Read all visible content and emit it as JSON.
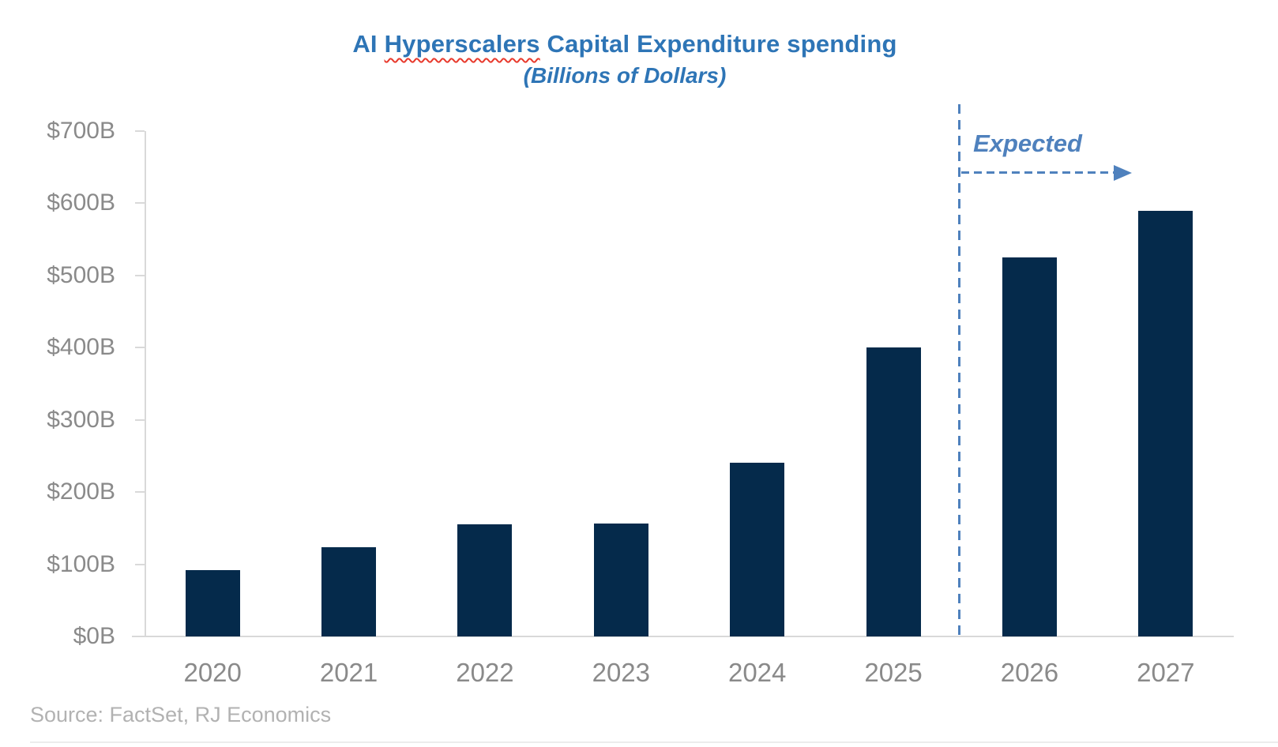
{
  "header": {
    "title_prefix": "AI ",
    "title_misspelled_word": "Hyperscalers",
    "title_suffix": " Capital Expenditure spending",
    "subtitle": "(Billions of Dollars)"
  },
  "annotation": {
    "expected_label": "Expected"
  },
  "footer": {
    "source": "Source: FactSet, RJ Economics"
  },
  "chart_data": {
    "type": "bar",
    "title": "AI Hyperscalers Capital Expenditure spending",
    "subtitle": "(Billions of Dollars)",
    "categories": [
      "2020",
      "2021",
      "2022",
      "2023",
      "2024",
      "2025",
      "2026",
      "2027"
    ],
    "values": [
      92,
      124,
      155,
      156,
      241,
      400,
      525,
      590
    ],
    "series_name": "AI Hyperscalers capital expenditure",
    "unit": "billions of dollars",
    "xlabel": "",
    "ylabel": "",
    "ylim": [
      0,
      700
    ],
    "y_tick_interval": 100,
    "y_tick_labels": [
      "$0B",
      "$100B",
      "$200B",
      "$300B",
      "$400B",
      "$500B",
      "$600B",
      "$700B"
    ],
    "grid": false,
    "legend": false,
    "annotation": {
      "text": "Expected",
      "divider_between": [
        "2025",
        "2026"
      ],
      "applies_to": [
        "2026",
        "2027"
      ]
    },
    "source": "Source: FactSet, RJ Economics",
    "colors": {
      "bar": "#052A4B",
      "title": "#2E75B6",
      "expected_annotation": "#4F81BD",
      "axis_labels": "#8A8A8A",
      "source_text": "#B2B2B2",
      "axis_line": "#D9D9D9",
      "spellcheck_underline": "#E8392C"
    }
  }
}
